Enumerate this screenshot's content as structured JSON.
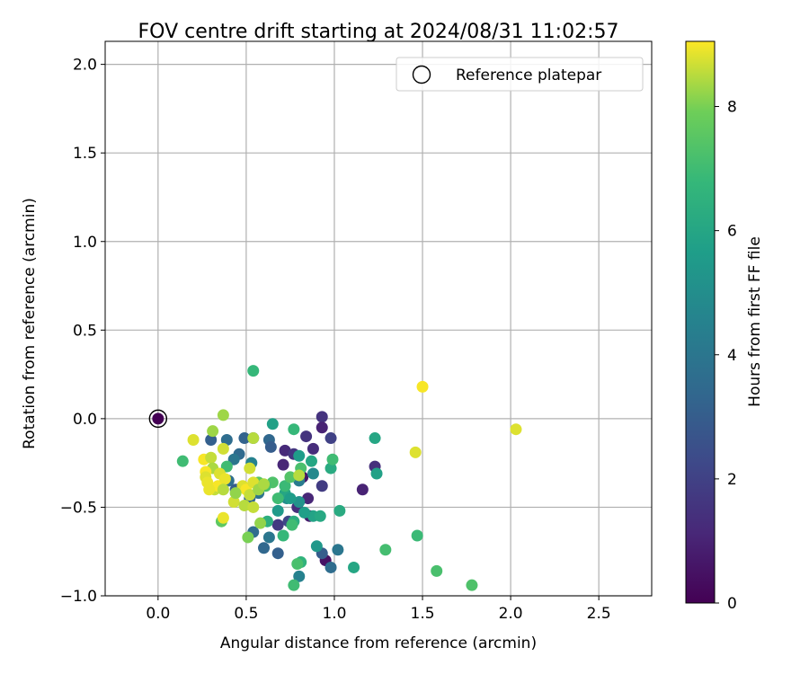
{
  "chart_data": {
    "type": "scatter",
    "title": "FOV centre drift starting at 2024/08/31 11:02:57",
    "xlabel": "Angular distance from reference (arcmin)",
    "ylabel": "Rotation from reference (arcmin)",
    "xlim": [
      -0.3,
      2.8
    ],
    "ylim": [
      -1.0,
      2.13
    ],
    "xticks": [
      "0.0",
      "0.5",
      "1.0",
      "1.5",
      "2.0",
      "2.5"
    ],
    "yticks": [
      "−1.0",
      "−0.5",
      "0.0",
      "0.5",
      "1.0",
      "1.5",
      "2.0"
    ],
    "grid": true,
    "legend": {
      "position": "top-right",
      "entries": [
        "Reference platepar"
      ]
    },
    "colorbar": {
      "label": "Hours from first FF file",
      "range": [
        0,
        9.05
      ],
      "ticks": [
        "0",
        "2",
        "4",
        "6",
        "8"
      ],
      "colormap": "viridis"
    },
    "reference_point": {
      "x": 0.0,
      "y": 0.0,
      "h": 0.0
    },
    "points": [
      {
        "x": 0.93,
        "y": 0.01,
        "h": 1.5
      },
      {
        "x": 0.93,
        "y": -0.05,
        "h": 1.0
      },
      {
        "x": 0.84,
        "y": -0.1,
        "h": 1.5
      },
      {
        "x": 0.98,
        "y": -0.11,
        "h": 2.0
      },
      {
        "x": 0.72,
        "y": -0.18,
        "h": 1.2
      },
      {
        "x": 0.77,
        "y": -0.2,
        "h": 1.6
      },
      {
        "x": 0.88,
        "y": -0.17,
        "h": 1.3
      },
      {
        "x": 0.71,
        "y": -0.26,
        "h": 1.1
      },
      {
        "x": 1.23,
        "y": -0.27,
        "h": 1.4
      },
      {
        "x": 1.16,
        "y": -0.4,
        "h": 1.0
      },
      {
        "x": 0.93,
        "y": -0.38,
        "h": 1.8
      },
      {
        "x": 0.82,
        "y": -0.33,
        "h": 0.6
      },
      {
        "x": 0.85,
        "y": -0.45,
        "h": 1.1
      },
      {
        "x": 0.86,
        "y": -0.55,
        "h": 0.8
      },
      {
        "x": 0.79,
        "y": -0.5,
        "h": 1.4
      },
      {
        "x": 0.95,
        "y": -0.8,
        "h": 0.5
      },
      {
        "x": 0.68,
        "y": -0.6,
        "h": 1.7
      },
      {
        "x": 0.74,
        "y": -0.58,
        "h": 2.2
      },
      {
        "x": 0.49,
        "y": -0.11,
        "h": 3.2
      },
      {
        "x": 0.54,
        "y": -0.11,
        "h": 3.0
      },
      {
        "x": 0.46,
        "y": -0.2,
        "h": 3.5
      },
      {
        "x": 0.63,
        "y": -0.12,
        "h": 3.4
      },
      {
        "x": 0.64,
        "y": -0.16,
        "h": 3.0
      },
      {
        "x": 0.3,
        "y": -0.12,
        "h": 3.1
      },
      {
        "x": 0.39,
        "y": -0.12,
        "h": 3.6
      },
      {
        "x": 0.43,
        "y": -0.23,
        "h": 4.0
      },
      {
        "x": 0.53,
        "y": -0.25,
        "h": 4.5
      },
      {
        "x": 0.4,
        "y": -0.35,
        "h": 3.7
      },
      {
        "x": 0.44,
        "y": -0.4,
        "h": 3.0
      },
      {
        "x": 0.52,
        "y": -0.45,
        "h": 3.3
      },
      {
        "x": 0.57,
        "y": -0.42,
        "h": 3.9
      },
      {
        "x": 0.6,
        "y": -0.73,
        "h": 3.4
      },
      {
        "x": 0.68,
        "y": -0.76,
        "h": 3.1
      },
      {
        "x": 0.98,
        "y": -0.84,
        "h": 3.6
      },
      {
        "x": 0.93,
        "y": -0.76,
        "h": 3.0
      },
      {
        "x": 1.02,
        "y": -0.74,
        "h": 4.0
      },
      {
        "x": 0.8,
        "y": -0.89,
        "h": 4.5
      },
      {
        "x": 0.63,
        "y": -0.67,
        "h": 4.0
      },
      {
        "x": 0.54,
        "y": -0.64,
        "h": 3.6
      },
      {
        "x": 0.88,
        "y": -0.31,
        "h": 4.8
      },
      {
        "x": 0.8,
        "y": -0.35,
        "h": 4.2
      },
      {
        "x": 0.73,
        "y": -0.45,
        "h": 5.0
      },
      {
        "x": 0.8,
        "y": -0.47,
        "h": 5.2
      },
      {
        "x": 0.68,
        "y": -0.52,
        "h": 5.5
      },
      {
        "x": 0.9,
        "y": -0.72,
        "h": 5.4
      },
      {
        "x": 0.65,
        "y": -0.03,
        "h": 5.8
      },
      {
        "x": 0.8,
        "y": -0.21,
        "h": 5.6
      },
      {
        "x": 0.87,
        "y": -0.24,
        "h": 6.0
      },
      {
        "x": 0.98,
        "y": -0.28,
        "h": 6.2
      },
      {
        "x": 1.24,
        "y": -0.31,
        "h": 5.8
      },
      {
        "x": 1.23,
        "y": -0.11,
        "h": 6.0
      },
      {
        "x": 1.03,
        "y": -0.52,
        "h": 6.2
      },
      {
        "x": 1.11,
        "y": -0.84,
        "h": 6.0
      },
      {
        "x": 0.88,
        "y": -0.55,
        "h": 5.9
      },
      {
        "x": 0.92,
        "y": -0.55,
        "h": 6.1
      },
      {
        "x": 0.72,
        "y": -0.42,
        "h": 6.0
      },
      {
        "x": 0.77,
        "y": -0.58,
        "h": 6.3
      },
      {
        "x": 0.83,
        "y": -0.53,
        "h": 5.7
      },
      {
        "x": 0.62,
        "y": -0.58,
        "h": 6.4
      },
      {
        "x": 0.75,
        "y": -0.45,
        "h": 5.6
      },
      {
        "x": 0.54,
        "y": 0.27,
        "h": 6.8
      },
      {
        "x": 0.77,
        "y": -0.06,
        "h": 6.8
      },
      {
        "x": 0.81,
        "y": -0.28,
        "h": 7.2
      },
      {
        "x": 0.99,
        "y": -0.23,
        "h": 7.0
      },
      {
        "x": 1.29,
        "y": -0.74,
        "h": 7.1
      },
      {
        "x": 1.47,
        "y": -0.66,
        "h": 6.9
      },
      {
        "x": 1.58,
        "y": -0.86,
        "h": 7.2
      },
      {
        "x": 1.78,
        "y": -0.94,
        "h": 7.3
      },
      {
        "x": 0.77,
        "y": -0.94,
        "h": 7.0
      },
      {
        "x": 0.81,
        "y": -0.81,
        "h": 6.6
      },
      {
        "x": 0.79,
        "y": -0.82,
        "h": 7.2
      },
      {
        "x": 0.71,
        "y": -0.66,
        "h": 6.8
      },
      {
        "x": 0.76,
        "y": -0.6,
        "h": 7.0
      },
      {
        "x": 0.14,
        "y": -0.24,
        "h": 7.0
      },
      {
        "x": 0.39,
        "y": -0.27,
        "h": 7.0
      },
      {
        "x": 0.65,
        "y": -0.36,
        "h": 7.3
      },
      {
        "x": 0.68,
        "y": -0.45,
        "h": 7.0
      },
      {
        "x": 0.72,
        "y": -0.38,
        "h": 6.9
      },
      {
        "x": 0.57,
        "y": -0.36,
        "h": 7.5
      },
      {
        "x": 0.75,
        "y": -0.33,
        "h": 7.4
      },
      {
        "x": 0.36,
        "y": -0.58,
        "h": 7.6
      },
      {
        "x": 0.61,
        "y": -0.38,
        "h": 7.2
      },
      {
        "x": 0.37,
        "y": 0.02,
        "h": 8.3
      },
      {
        "x": 0.31,
        "y": -0.07,
        "h": 8.3
      },
      {
        "x": 0.2,
        "y": -0.12,
        "h": 8.8
      },
      {
        "x": 0.54,
        "y": -0.11,
        "h": 8.5
      },
      {
        "x": 0.26,
        "y": -0.23,
        "h": 9.0
      },
      {
        "x": 0.3,
        "y": -0.22,
        "h": 8.6
      },
      {
        "x": 0.37,
        "y": -0.17,
        "h": 8.7
      },
      {
        "x": 0.31,
        "y": -0.28,
        "h": 8.4
      },
      {
        "x": 0.27,
        "y": -0.3,
        "h": 9.0
      },
      {
        "x": 0.27,
        "y": -0.33,
        "h": 8.8
      },
      {
        "x": 0.28,
        "y": -0.36,
        "h": 8.9
      },
      {
        "x": 0.32,
        "y": -0.4,
        "h": 8.6
      },
      {
        "x": 0.34,
        "y": -0.38,
        "h": 9.0
      },
      {
        "x": 0.35,
        "y": -0.31,
        "h": 8.8
      },
      {
        "x": 0.38,
        "y": -0.34,
        "h": 8.9
      },
      {
        "x": 0.37,
        "y": -0.4,
        "h": 8.5
      },
      {
        "x": 0.43,
        "y": -0.47,
        "h": 8.7
      },
      {
        "x": 0.48,
        "y": -0.38,
        "h": 8.8
      },
      {
        "x": 0.5,
        "y": -0.4,
        "h": 9.0
      },
      {
        "x": 0.52,
        "y": -0.43,
        "h": 8.6
      },
      {
        "x": 0.54,
        "y": -0.36,
        "h": 8.8
      },
      {
        "x": 0.52,
        "y": -0.28,
        "h": 8.7
      },
      {
        "x": 0.49,
        "y": -0.49,
        "h": 8.5
      },
      {
        "x": 0.54,
        "y": -0.5,
        "h": 8.6
      },
      {
        "x": 0.58,
        "y": -0.59,
        "h": 8.2
      },
      {
        "x": 0.51,
        "y": -0.67,
        "h": 8.0
      },
      {
        "x": 0.37,
        "y": -0.56,
        "h": 8.9
      },
      {
        "x": 0.57,
        "y": -0.4,
        "h": 8.3
      },
      {
        "x": 0.6,
        "y": -0.37,
        "h": 8.4
      },
      {
        "x": 0.8,
        "y": -0.32,
        "h": 8.5
      },
      {
        "x": 1.46,
        "y": -0.19,
        "h": 8.8
      },
      {
        "x": 1.5,
        "y": 0.18,
        "h": 9.0
      },
      {
        "x": 2.03,
        "y": -0.06,
        "h": 8.8
      },
      {
        "x": 0.44,
        "y": -0.42,
        "h": 8.2
      },
      {
        "x": 0.29,
        "y": -0.4,
        "h": 8.9
      }
    ]
  }
}
